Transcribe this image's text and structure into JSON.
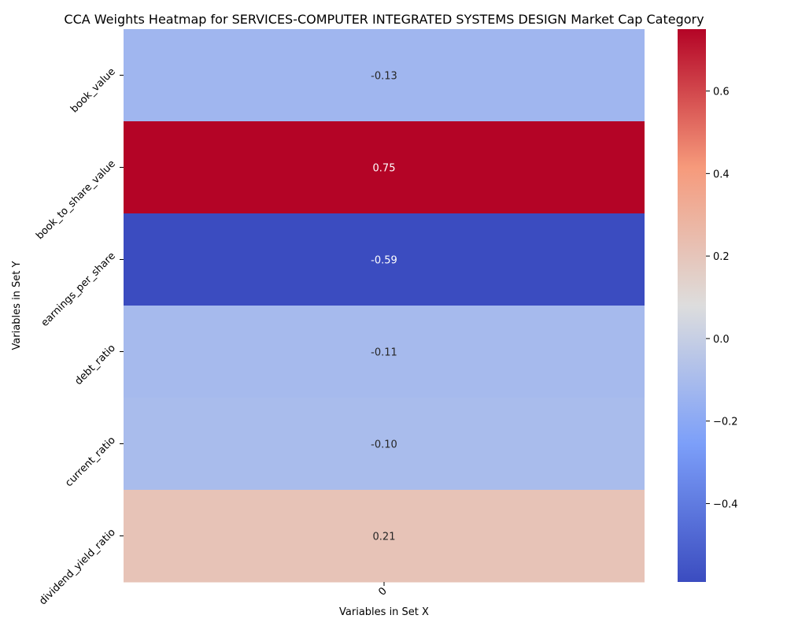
{
  "chart_data": {
    "type": "heatmap",
    "title": "CCA Weights Heatmap for SERVICES-COMPUTER INTEGRATED SYSTEMS DESIGN Market Cap Category",
    "xlabel": "Variables in Set X",
    "ylabel": "Variables in Set Y",
    "x_categories": [
      "0"
    ],
    "y_categories": [
      "book_value",
      "book_to_share_value",
      "earnings_per_share",
      "debt_ratio",
      "current_ratio",
      "dividend_yield_ratio"
    ],
    "values": [
      [
        -0.13
      ],
      [
        0.75
      ],
      [
        -0.59
      ],
      [
        -0.11
      ],
      [
        -0.1
      ],
      [
        0.21
      ]
    ],
    "value_labels": [
      "-0.13",
      "0.75",
      "-0.59",
      "-0.11",
      "-0.10",
      "0.21"
    ],
    "colormap": "coolwarm",
    "vmin": -0.59,
    "vmax": 0.75,
    "colorbar_ticks": [
      {
        "value": 0.6,
        "label": "0.6"
      },
      {
        "value": 0.4,
        "label": "0.4"
      },
      {
        "value": 0.2,
        "label": "0.2"
      },
      {
        "value": 0.0,
        "label": "0.0"
      },
      {
        "value": -0.2,
        "label": "−0.2"
      },
      {
        "value": -0.4,
        "label": "−0.4"
      }
    ]
  }
}
